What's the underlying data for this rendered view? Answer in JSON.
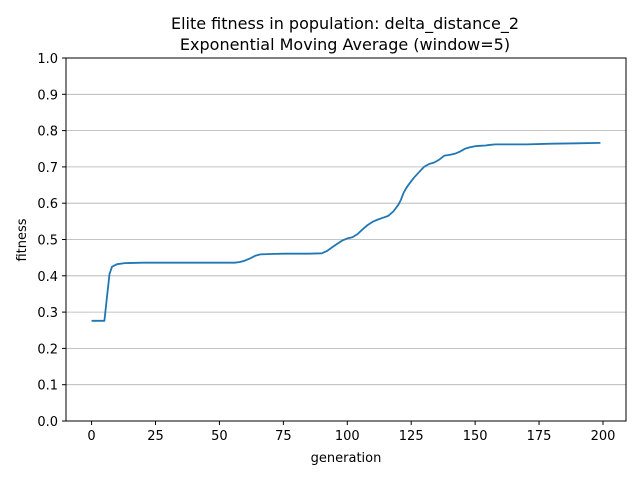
{
  "chart_data": {
    "type": "line",
    "title": "Elite fitness in population: delta_distance_2",
    "subtitle": "Exponential Moving Average (window=5)",
    "xlabel": "generation",
    "ylabel": "fitness",
    "xlim": [
      -10,
      209
    ],
    "ylim": [
      0.0,
      1.0
    ],
    "xticks": [
      0,
      25,
      50,
      75,
      100,
      125,
      150,
      175,
      200
    ],
    "yticks": [
      0.0,
      0.1,
      0.2,
      0.3,
      0.4,
      0.5,
      0.6,
      0.7,
      0.8,
      0.9,
      1.0
    ],
    "ytick_labels": [
      "0.0",
      "0.1",
      "0.2",
      "0.3",
      "0.4",
      "0.5",
      "0.6",
      "0.7",
      "0.8",
      "0.9",
      "1.0"
    ],
    "grid": "horizontal",
    "line_color": "#1f77b4",
    "series": [
      {
        "x": [
          0,
          5,
          6,
          7,
          8,
          10,
          13,
          20,
          30,
          40,
          50,
          56,
          58,
          60,
          62,
          64,
          66,
          70,
          75,
          80,
          85,
          90,
          92,
          94,
          96,
          98,
          100,
          102,
          104,
          106,
          108,
          110,
          112,
          114,
          116,
          118,
          120,
          121,
          122,
          123,
          124,
          126,
          128,
          130,
          132,
          134,
          136,
          138,
          140,
          142,
          144,
          146,
          148,
          150,
          152,
          154,
          156,
          158,
          160,
          170,
          180,
          190,
          199
        ],
        "y": [
          0.276,
          0.276,
          0.34,
          0.405,
          0.425,
          0.432,
          0.435,
          0.436,
          0.436,
          0.436,
          0.436,
          0.436,
          0.438,
          0.442,
          0.448,
          0.455,
          0.459,
          0.46,
          0.461,
          0.461,
          0.461,
          0.462,
          0.468,
          0.478,
          0.488,
          0.497,
          0.503,
          0.506,
          0.515,
          0.528,
          0.54,
          0.549,
          0.555,
          0.56,
          0.565,
          0.577,
          0.596,
          0.61,
          0.628,
          0.641,
          0.651,
          0.67,
          0.685,
          0.7,
          0.708,
          0.712,
          0.72,
          0.731,
          0.733,
          0.736,
          0.742,
          0.75,
          0.754,
          0.757,
          0.758,
          0.759,
          0.761,
          0.762,
          0.762,
          0.762,
          0.764,
          0.765,
          0.766
        ]
      }
    ]
  }
}
